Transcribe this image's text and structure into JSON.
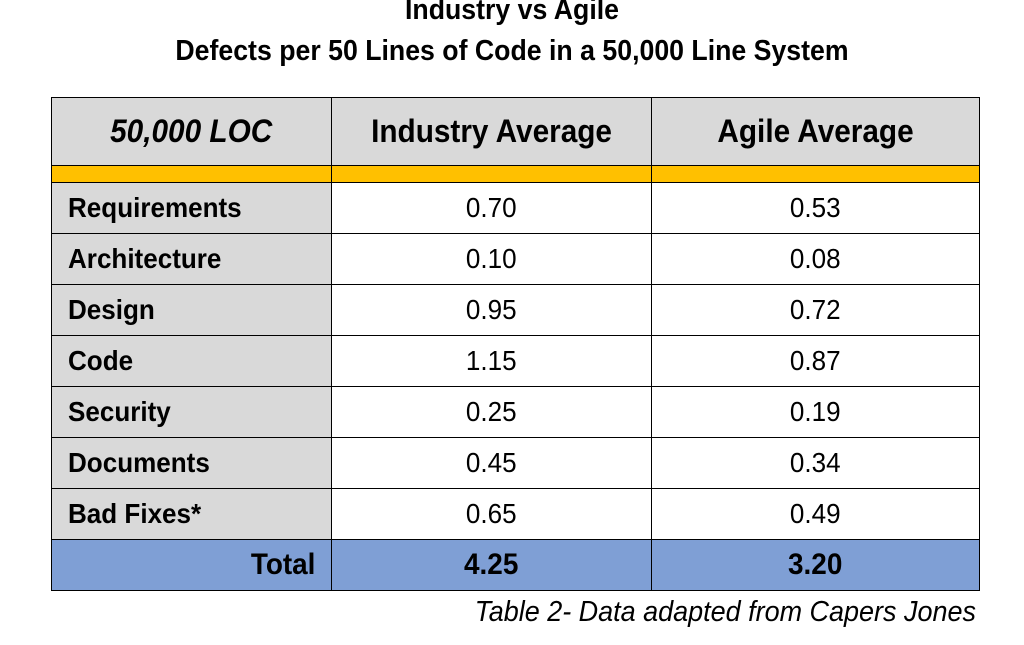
{
  "title_line1": "Industry vs Agile",
  "title_line2": "Defects per 50 Lines of Code in a 50,000 Line System",
  "caption": "Table 2- Data adapted from Capers Jones",
  "colors": {
    "header_bg": "#d9d9d9",
    "accent_stripe": "#ffc000",
    "label_bg": "#d9d9d9",
    "total_bg": "#7f9fd5"
  },
  "chart_data": {
    "type": "table",
    "title": "Industry vs Agile\nDefects per 50 Lines of Code in a 50,000 Line System",
    "columns": [
      "50,000 LOC",
      "Industry Average",
      "Agile Average"
    ],
    "rows": [
      {
        "label": "Requirements",
        "industry": "0.70",
        "agile": "0.53"
      },
      {
        "label": "Architecture",
        "industry": "0.10",
        "agile": "0.08"
      },
      {
        "label": "Design",
        "industry": "0.95",
        "agile": "0.72"
      },
      {
        "label": "Code",
        "industry": "1.15",
        "agile": "0.87"
      },
      {
        "label": "Security",
        "industry": "0.25",
        "agile": "0.19"
      },
      {
        "label": "Documents",
        "industry": "0.45",
        "agile": "0.34"
      },
      {
        "label": "Bad Fixes*",
        "industry": "0.65",
        "agile": "0.49"
      }
    ],
    "total": {
      "label": "Total",
      "industry": "4.25",
      "agile": "3.20"
    }
  }
}
